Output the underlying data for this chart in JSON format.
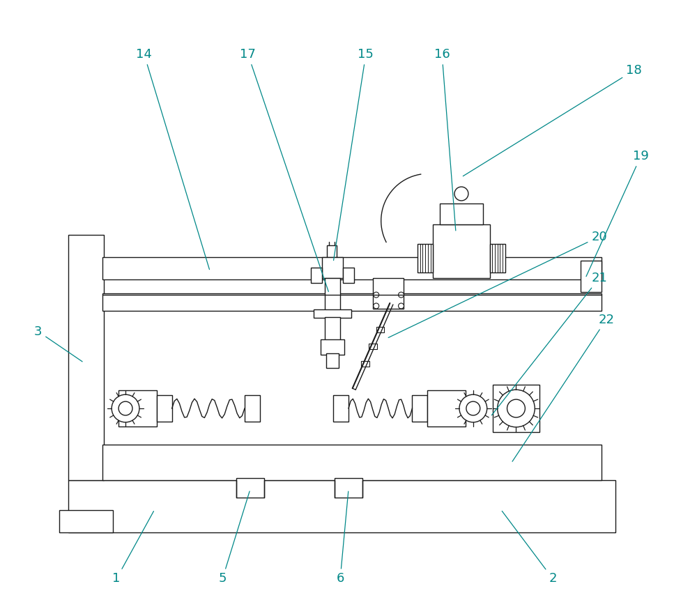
{
  "bg_color": "#ffffff",
  "line_color": "#1a1a1a",
  "label_color": "#008888",
  "fig_width": 10.0,
  "fig_height": 8.71,
  "lw": 1.0
}
